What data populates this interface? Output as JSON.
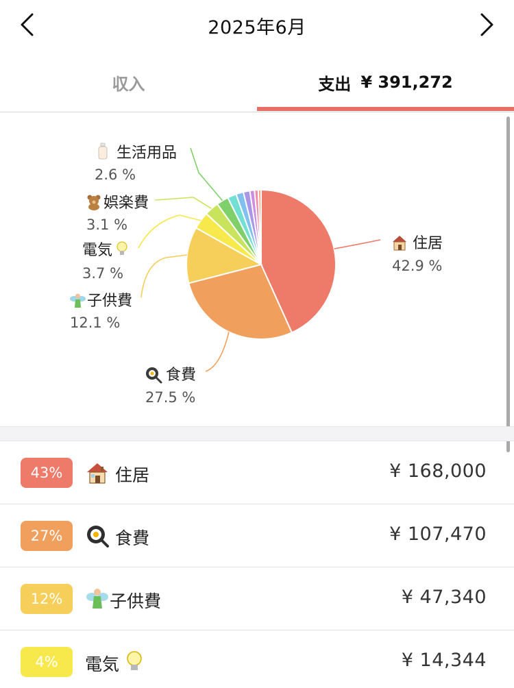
{
  "header": {
    "title": "2025年6月"
  },
  "tabs": {
    "income_label": "収入",
    "expense_label": "支出",
    "expense_total": "¥ 391,272"
  },
  "colors": {
    "accent": "#e86f63",
    "housing": "#ee7a6a",
    "food": "#f0a05c",
    "kids": "#f6cf5a",
    "electric": "#f7e84b",
    "entertainment": "#c9e45c",
    "daily": "#7fd06a"
  },
  "chart_data": {
    "type": "pie",
    "slices": [
      {
        "label": "住居",
        "icon": "house-icon",
        "percent": 42.9,
        "percent_label": "42.9 %",
        "color": "#ee7a6a"
      },
      {
        "label": "食費",
        "icon": "frying-pan-icon",
        "percent": 27.5,
        "percent_label": "27.5 %",
        "color": "#f0a05c"
      },
      {
        "label": "子供費",
        "icon": "fairy-icon",
        "percent": 12.1,
        "percent_label": "12.1 %",
        "color": "#f6cf5a"
      },
      {
        "label": "電気",
        "icon": "light-bulb-icon",
        "percent": 3.7,
        "percent_label": "3.7 %",
        "color": "#f7e84b"
      },
      {
        "label": "娯楽費",
        "icon": "teddy-bear-icon",
        "percent": 3.1,
        "percent_label": "3.1 %",
        "color": "#c9e45c"
      },
      {
        "label": "生活用品",
        "icon": "lotion-bottle-icon",
        "percent": 2.6,
        "percent_label": "2.6 %",
        "color": "#7fd06a"
      },
      {
        "label": "",
        "percent": 1.9,
        "color": "#72dfd4"
      },
      {
        "label": "",
        "percent": 1.6,
        "color": "#7fc0ef"
      },
      {
        "label": "",
        "percent": 1.4,
        "color": "#a897e6"
      },
      {
        "label": "",
        "percent": 1.0,
        "color": "#d08be0"
      },
      {
        "label": "",
        "percent": 0.8,
        "color": "#f08aa8"
      },
      {
        "label": "",
        "percent": 0.6,
        "color": "#f7a37a"
      }
    ]
  },
  "list": {
    "rows": [
      {
        "badge": "43%",
        "label": "住居",
        "amount": "¥ 168,000",
        "color": "#ee7a6a",
        "icon": "house-icon"
      },
      {
        "badge": "27%",
        "label": "食費",
        "amount": "¥ 107,470",
        "color": "#f0a05c",
        "icon": "frying-pan-icon"
      },
      {
        "badge": "12%",
        "label": "子供費",
        "amount": "¥ 47,340",
        "color": "#f6cf5a",
        "icon": "fairy-icon"
      },
      {
        "badge": "4%",
        "label": "電気",
        "amount": "¥ 14,344",
        "color": "#f7e84b",
        "icon": "light-bulb-icon"
      }
    ]
  }
}
